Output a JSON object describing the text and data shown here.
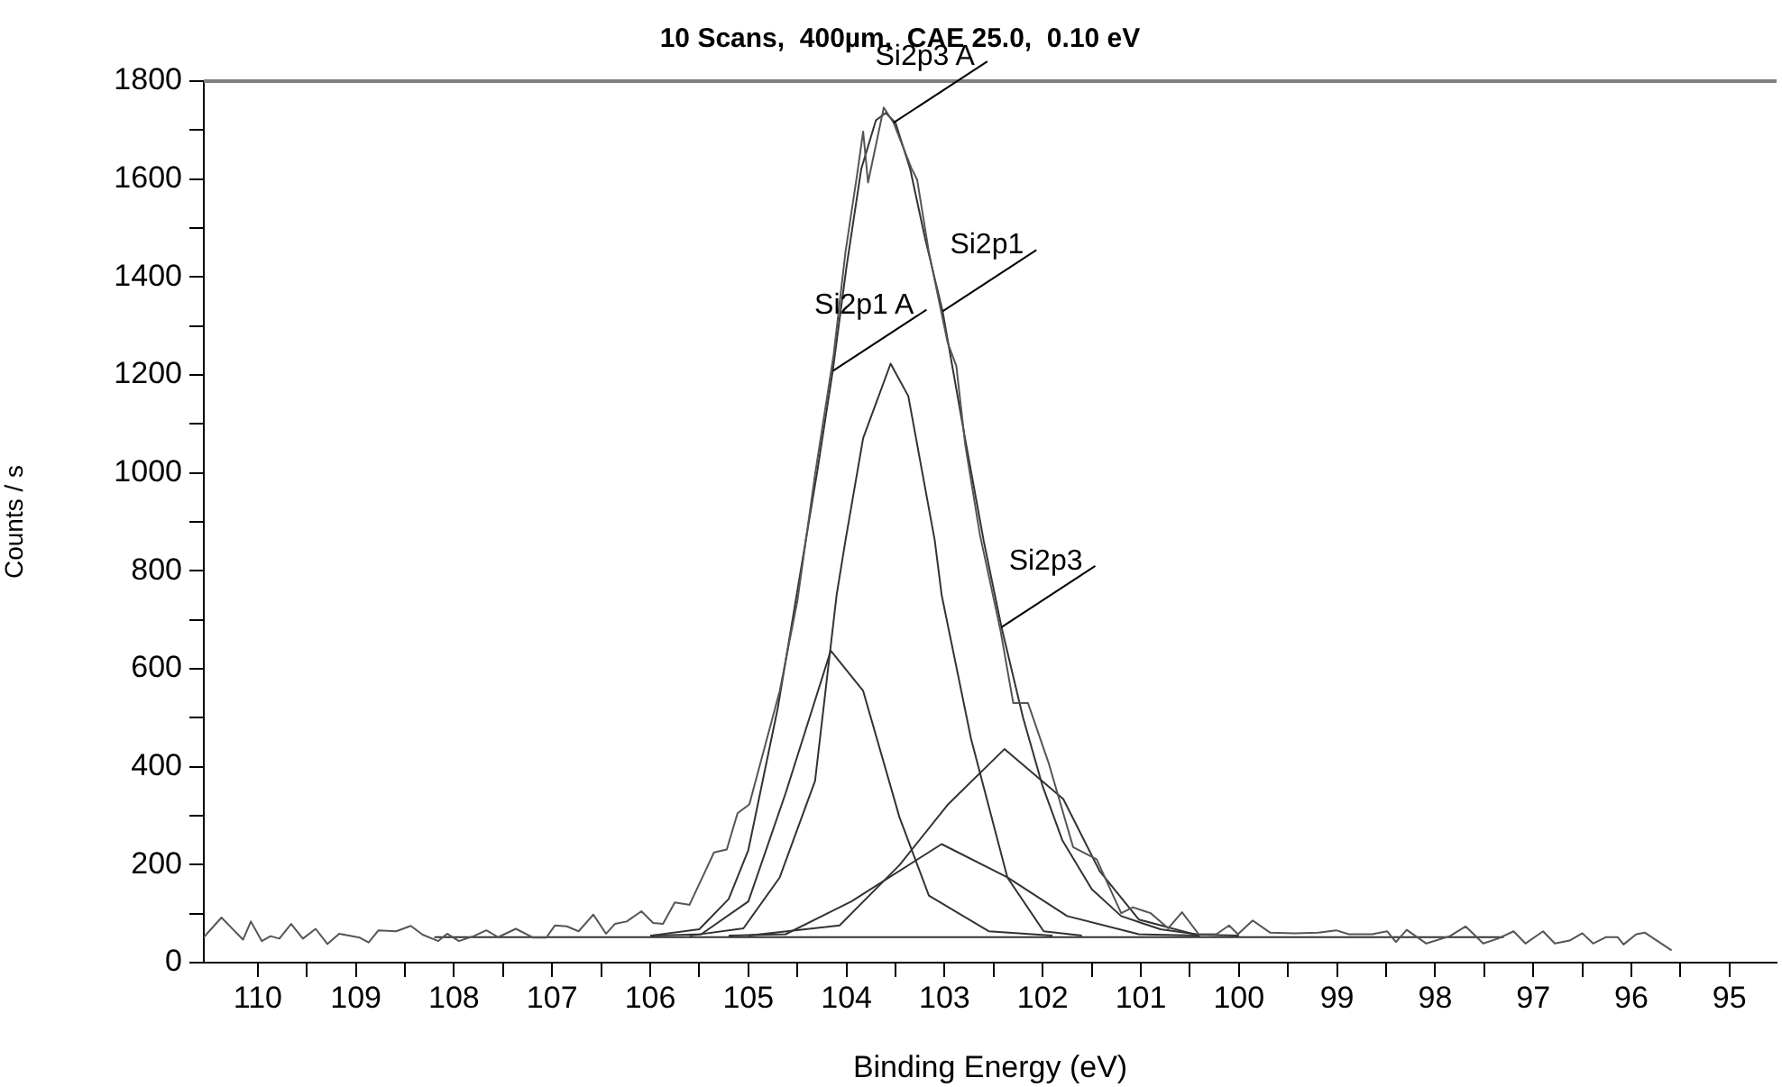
{
  "chart_data": {
    "type": "line",
    "title": "10 Scans,  400µm,  CAE 25.0,  0.10 eV",
    "xlabel": "Binding Energy (eV)",
    "ylabel": "Counts / s",
    "xlim": [
      110.55,
      94.52
    ],
    "ylim": [
      0,
      1800
    ],
    "xticks": [
      110,
      {
        "value": 109.5,
        "label": null
      },
      109,
      {
        "value": 108.5,
        "label": null
      },
      108,
      {
        "value": 107.5,
        "label": null
      },
      107,
      {
        "value": 106.5,
        "label": null
      },
      106,
      {
        "value": 105.5,
        "label": null
      },
      105,
      {
        "value": 104.5,
        "label": null
      },
      104,
      {
        "value": 103.5,
        "label": null
      },
      103,
      {
        "value": 102.5,
        "label": null
      },
      102,
      {
        "value": 101.5,
        "label": null
      },
      101,
      {
        "value": 100.5,
        "label": null
      },
      100,
      {
        "value": 99.5,
        "label": null
      },
      99,
      {
        "value": 98.5,
        "label": null
      },
      98,
      {
        "value": 97.5,
        "label": null
      },
      97,
      {
        "value": 96.5,
        "label": null
      },
      96,
      {
        "value": 95.5,
        "label": null
      },
      95
    ],
    "yticks": [
      0,
      {
        "value": 100,
        "label": null
      },
      200,
      {
        "value": 300,
        "label": null
      },
      400,
      {
        "value": 500,
        "label": null
      },
      600,
      {
        "value": 700,
        "label": null
      },
      800,
      {
        "value": 900,
        "label": null
      },
      1000,
      {
        "value": 1100,
        "label": null
      },
      1200,
      {
        "value": 1300,
        "label": null
      },
      1400,
      {
        "value": 1500,
        "label": null
      },
      1600,
      {
        "value": 1700,
        "label": null
      },
      1800
    ],
    "grid": false,
    "legend": false,
    "marker": "none",
    "line_style": "solid",
    "series": [
      {
        "color": "#555555",
        "x": [
          110.55,
          110.37,
          110.15,
          110.07,
          109.96,
          109.87,
          109.78,
          109.66,
          109.54,
          109.41,
          109.29,
          109.17,
          108.96,
          108.87,
          108.77,
          108.59,
          108.44,
          108.32,
          108.16,
          108.07,
          107.95,
          107.8,
          107.67,
          107.55,
          107.37,
          107.19,
          107.06,
          106.97,
          106.85,
          106.73,
          106.58,
          106.45,
          106.36,
          106.24,
          106.09,
          105.97,
          105.87,
          105.75,
          105.6,
          105.45,
          105.35,
          105.22,
          105.11,
          104.99,
          104.68,
          104.5,
          104.32,
          104.13,
          104.01,
          103.89,
          103.83,
          103.78,
          103.62,
          103.52,
          103.34,
          103.28,
          103.16,
          102.97,
          102.88,
          102.79,
          102.64,
          102.43,
          102.3,
          102.15,
          101.94,
          101.69,
          101.45,
          101.2,
          101.08,
          100.9,
          100.72,
          100.58,
          100.41,
          100.23,
          100.1,
          100.01,
          99.86,
          99.68,
          99.43,
          99.19,
          99.01,
          98.88,
          98.64,
          98.49,
          98.4,
          98.29,
          98.09,
          97.85,
          97.69,
          97.51,
          97.36,
          97.2,
          97.08,
          96.9,
          96.78,
          96.63,
          96.5,
          96.39,
          96.26,
          96.14,
          96.08,
          95.95,
          95.86,
          95.74,
          95.59
        ],
        "values": [
          52,
          92,
          47,
          84,
          44,
          54,
          49,
          79,
          49,
          69,
          38,
          59,
          51,
          41,
          66,
          64,
          75,
          57,
          44,
          59,
          44,
          54,
          66,
          52,
          69,
          51,
          51,
          76,
          74,
          64,
          98,
          59,
          79,
          84,
          105,
          81,
          79,
          123,
          118,
          182,
          225,
          231,
          305,
          323,
          555,
          739,
          997,
          1242,
          1451,
          1611,
          1697,
          1593,
          1746,
          1715,
          1623,
          1599,
          1451,
          1267,
          1218,
          1058,
          874,
          678,
          530,
          530,
          408,
          236,
          211,
          101,
          113,
          101,
          70,
          103,
          58,
          58,
          76,
          58,
          86,
          61,
          60,
          61,
          66,
          58,
          58,
          64,
          42,
          67,
          39,
          54,
          74,
          39,
          49,
          64,
          39,
          64,
          39,
          45,
          60,
          39,
          52,
          52,
          37,
          58,
          61,
          45,
          25
        ]
      },
      {
        "color": "#333333",
        "x": [
          106.0,
          105.5,
          105.2,
          105.0,
          104.7,
          104.5,
          104.3,
          104.14,
          104.0,
          103.85,
          103.7,
          103.6,
          103.5,
          103.35,
          103.2,
          103.02,
          102.8,
          102.6,
          102.42,
          102.2,
          102.0,
          101.8,
          101.5,
          101.2,
          100.8,
          100.4,
          100.0
        ],
        "values": [
          55,
          68,
          130,
          230,
          520,
          760,
          1000,
          1208,
          1420,
          1620,
          1720,
          1735,
          1715,
          1620,
          1480,
          1330,
          1080,
          860,
          685,
          500,
          360,
          250,
          150,
          95,
          68,
          57,
          55
        ]
      },
      {
        "color": "#333333",
        "x": [
          105.6,
          105.05,
          104.68,
          104.32,
          104.1,
          104.01,
          103.83,
          103.55,
          103.37,
          103.1,
          103.03,
          102.73,
          102.36,
          101.99,
          101.6
        ],
        "values": [
          55,
          70,
          174,
          371,
          751,
          862,
          1071,
          1223,
          1157,
          862,
          751,
          457,
          174,
          64,
          55
        ]
      },
      {
        "color": "#333333",
        "x": [
          106.0,
          105.48,
          105.0,
          104.62,
          104.16,
          103.83,
          103.46,
          103.16,
          102.55,
          101.9
        ],
        "values": [
          55,
          58,
          125,
          346,
          637,
          555,
          297,
          137,
          64,
          55
        ]
      },
      {
        "color": "#333333",
        "x": [
          105.2,
          104.62,
          103.95,
          103.03,
          102.36,
          101.75,
          101.02,
          100.4
        ],
        "values": [
          55,
          58,
          125,
          242,
          174,
          95,
          58,
          55
        ]
      },
      {
        "color": "#333333",
        "x": [
          105.0,
          104.07,
          103.46,
          102.97,
          102.39,
          101.79,
          101.42,
          101.02,
          100.4
        ],
        "values": [
          55,
          76,
          199,
          322,
          436,
          334,
          187,
          88,
          55
        ]
      },
      {
        "color": "#333333",
        "x": [
          108.2,
          97.3
        ],
        "values": [
          52,
          52
        ]
      }
    ],
    "annotations": [
      {
        "text": "Si2p3 A",
        "x": 103.52,
        "y": 1715
      },
      {
        "text": "Si2p1",
        "x": 103.02,
        "y": 1330
      },
      {
        "text": "Si2p1 A",
        "x": 104.14,
        "y": 1208
      },
      {
        "text": "Si2p3",
        "x": 102.42,
        "y": 685
      }
    ]
  }
}
